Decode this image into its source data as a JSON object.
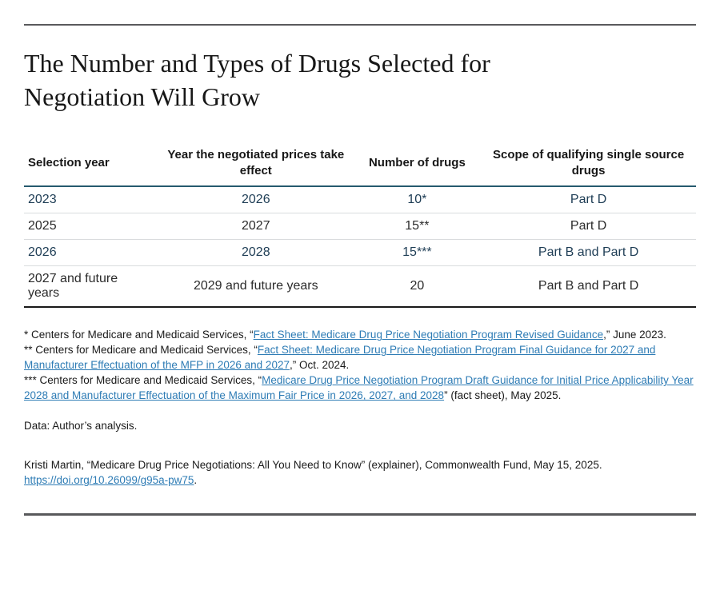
{
  "header": {
    "title": "The Number and Types of Drugs Selected for Negotiation Will Grow"
  },
  "table": {
    "columns": [
      "Selection year",
      "Year the negotiated prices take effect",
      "Number of drugs",
      "Scope of qualifying single source drugs"
    ],
    "rows": [
      {
        "cells": [
          "2023",
          "2026",
          "10*",
          "Part D"
        ]
      },
      {
        "cells": [
          "2025",
          "2027",
          "15**",
          "Part D"
        ]
      },
      {
        "cells": [
          "2026",
          "2028",
          "15***",
          "Part B and Part D"
        ]
      },
      {
        "cells": [
          "2027 and future years",
          "2029 and future years",
          "20",
          "Part B and Part D"
        ]
      }
    ]
  },
  "footnotes": [
    {
      "prefix": "* Centers for Medicare and Medicaid Services, “",
      "link": "Fact Sheet: Medicare Drug Price Negotiation Program Revised Guidance",
      "suffix": ",” June 2023."
    },
    {
      "prefix": "** Centers for Medicare and Medicaid Services, “",
      "link": "Fact Sheet: Medicare Drug Price Negotiation Program Final Guidance for 2027 and Manufacturer Effectuation of the MFP in 2026 and 2027",
      "suffix": ",” Oct. 2024."
    },
    {
      "prefix": "*** Centers for Medicare and Medicaid Services, “",
      "link": "Medicare Drug Price Negotiation Program Draft Guidance for Initial Price Applicability Year 2028 and Manufacturer Effectuation of the Maximum Fair Price in 2026, 2027, and 2028",
      "suffix": "” (fact sheet), May 2025."
    }
  ],
  "data_note": "Data: Author’s analysis.",
  "citation": {
    "text": "Kristi Martin, “Medicare Drug Price Negotiations: All You Need to Know” (explainer), Commonwealth Fund, May 15, 2025.",
    "link": "https://doi.org/10.26099/g95a-pw75",
    "suffix": "."
  },
  "colors": {
    "rule_gray": "#58595b",
    "header_border_teal": "#265a6e",
    "row_text_navy": "#1e3d55",
    "body_text": "#1a1a1a",
    "link_blue": "#2e7cb5",
    "row_border": "#d9dcde"
  }
}
